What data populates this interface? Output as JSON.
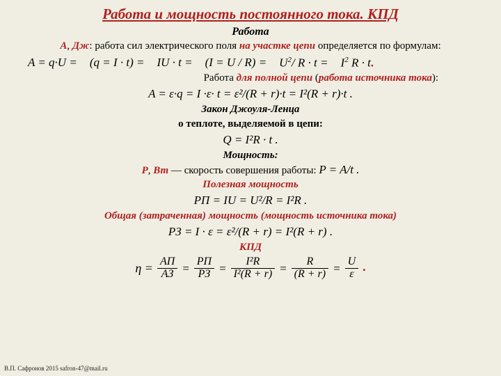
{
  "title": "Работа и мощность постоянного тока. КПД",
  "s1": {
    "heading": "Работа",
    "sym": "A",
    "unit": "Дж",
    "t1": ": работа сил электрического поля ",
    "t2": "на участке цепи",
    "t3": " определяется по формулам:"
  },
  "eq1": {
    "a": "A = q·U =",
    "b": "(q = I · t) =",
    "c": "IU · t =",
    "d": "(I = U / R) =",
    "e_num": "U",
    "e_sup": "2",
    "e_after": "/ R · t =",
    "f": "I",
    "f_sup": "2",
    "f_after": " R · t"
  },
  "line2": {
    "t1": "Работа ",
    "t2": "для полной цепи",
    "t3": " (",
    "t4": "работа источника тока",
    "t5": "):"
  },
  "eq2": "A = ε·q = I ·ε· t = ε²/(R + r)·t = I²(R + r)·t .",
  "joule": {
    "h1": "Закон Джоуля-Ленца",
    "h2": "о теплоте, выделяемой в цепи:",
    "eq": "Q = I²R · t ."
  },
  "power": {
    "heading": "Мощность:",
    "sym": "P",
    "unit": "Вт",
    "t1": " — скорость совершения работы: ",
    "eq": "P = A/t ."
  },
  "useful": {
    "heading": "Полезная мощность",
    "eq": "PП = IU = U²/R = I²R ."
  },
  "total": {
    "heading": "Общая (затраченная) мощность (мощность источника тока)",
    "eq": "PЗ = I · ε = ε²/(R + r) = I²(R + r) ."
  },
  "kpd": {
    "heading": "КПД",
    "eta": "η =",
    "f1_num": "AП",
    "f1_den": "AЗ",
    "f2_num": "PП",
    "f2_den": "PЗ",
    "f3_num": "I²R",
    "f3_den": "I²(R + r)",
    "f4_num": "R",
    "f4_den": "(R + r)",
    "f5_num": "U",
    "f5_den": "ε",
    "eqs": "="
  },
  "footer": "В.П. Сафронов 2015 safron-47@mail.ru",
  "period": "."
}
